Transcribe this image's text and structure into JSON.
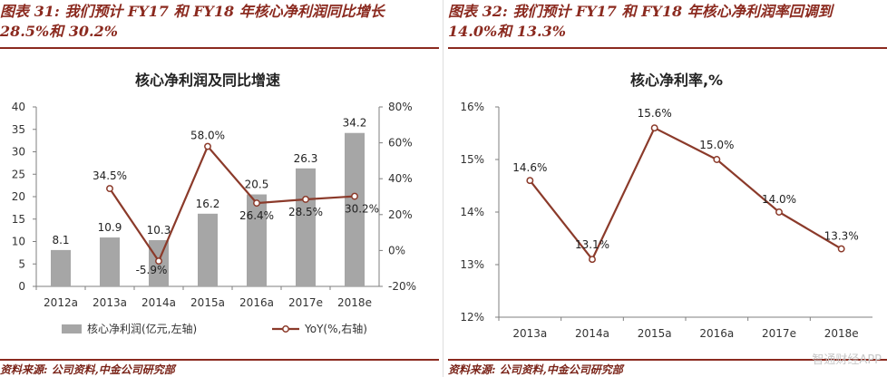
{
  "left": {
    "caption_line1": "图表 31: 我们预计 FY17 和 FY18 年核心净利润同比增长",
    "caption_line2": "28.5%和 30.2%",
    "source": "资料来源:  公司资料,中金公司研究部"
  },
  "right": {
    "caption_line1": "图表 32: 我们预计 FY17 和 FY18 年核心净利润率回调到",
    "caption_line2": "14.0%和 13.3%",
    "source": "资料来源:  公司资料,中金公司研究部"
  },
  "watermark": "智通财经APP",
  "colors": {
    "accent": "#8b2a1f",
    "bar": "#a6a6a6",
    "line": "#8b3a2a",
    "marker_fill": "#ffffff"
  },
  "chart_data": [
    {
      "type": "bar+line",
      "title": "核心净利润及同比增速",
      "categories": [
        "2012a",
        "2013a",
        "2014a",
        "2015a",
        "2016a",
        "2017e",
        "2018e"
      ],
      "series": [
        {
          "name": "核心净利润(亿元,左轴)",
          "type": "bar",
          "axis": "left",
          "values": [
            8.1,
            10.9,
            10.3,
            16.2,
            20.5,
            26.3,
            34.2
          ],
          "labels": [
            "8.1",
            "10.9",
            "10.3",
            "16.2",
            "20.5",
            "26.3",
            "34.2"
          ]
        },
        {
          "name": "YoY(%,右轴)",
          "type": "line",
          "axis": "right",
          "values": [
            null,
            34.5,
            -5.9,
            58.0,
            26.4,
            28.5,
            30.2
          ],
          "labels": [
            null,
            "34.5%",
            "-5.9%",
            "58.0%",
            "26.4%",
            "28.5%",
            "30.2%"
          ]
        }
      ],
      "left_axis": {
        "min": 0,
        "max": 40,
        "ticks": [
          "0",
          "5",
          "10",
          "15",
          "20",
          "25",
          "30",
          "35",
          "40"
        ]
      },
      "right_axis": {
        "min": -20,
        "max": 80,
        "ticks": [
          "-20%",
          "0%",
          "20%",
          "40%",
          "60%",
          "80%"
        ]
      },
      "legend": [
        "核心净利润(亿元,左轴)",
        "YoY(%,右轴)"
      ],
      "legend_position": "bottom"
    },
    {
      "type": "line",
      "title": "核心净利率,%",
      "categories": [
        "2013a",
        "2014a",
        "2015a",
        "2016a",
        "2017e",
        "2018e"
      ],
      "series": [
        {
          "name": "核心净利率",
          "values": [
            14.6,
            13.1,
            15.6,
            15.0,
            14.0,
            13.3
          ],
          "labels": [
            "14.6%",
            "13.1%",
            "15.6%",
            "15.0%",
            "14.0%",
            "13.3%"
          ]
        }
      ],
      "y_axis": {
        "min": 12,
        "max": 16,
        "ticks": [
          "12%",
          "13%",
          "14%",
          "15%",
          "16%"
        ]
      }
    }
  ]
}
